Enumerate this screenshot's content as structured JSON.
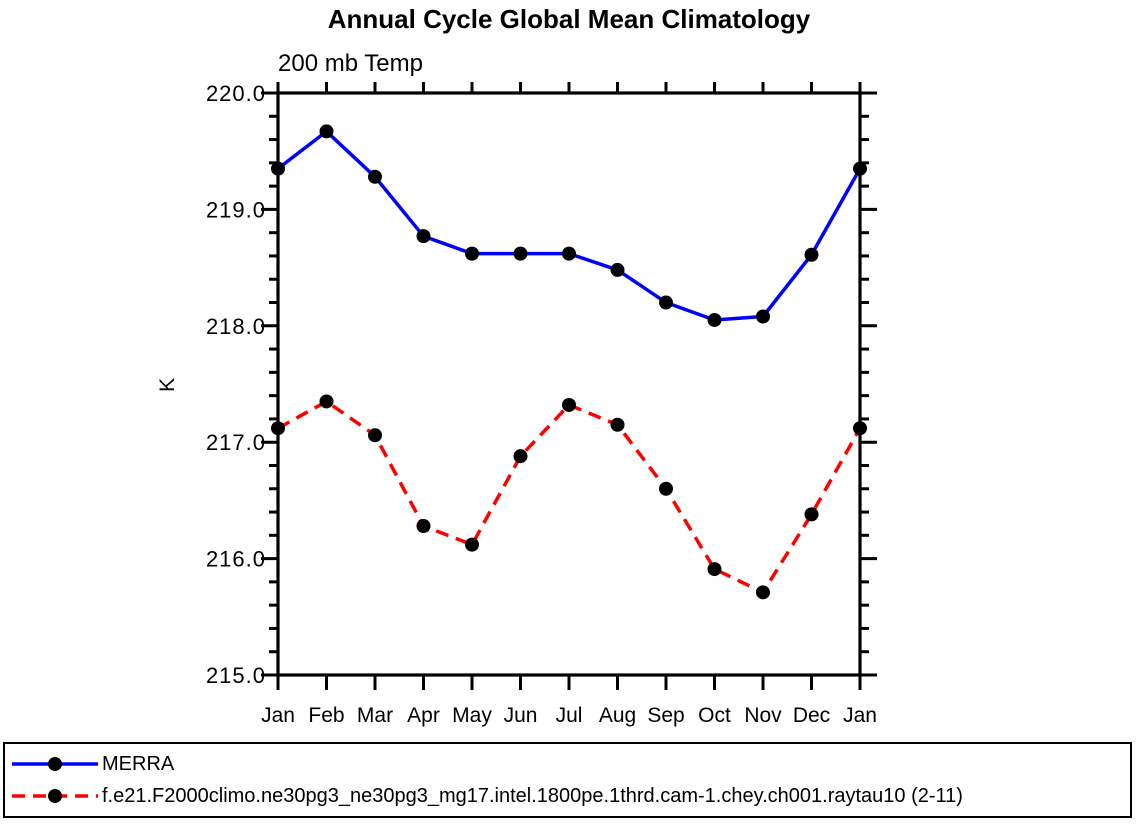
{
  "chart_data": {
    "type": "line",
    "title": "Annual Cycle Global Mean Climatology",
    "subtitle": "200 mb Temp",
    "ylabel": "K",
    "xlabel": "",
    "categories": [
      "Jan",
      "Feb",
      "Mar",
      "Apr",
      "May",
      "Jun",
      "Jul",
      "Aug",
      "Sep",
      "Oct",
      "Nov",
      "Dec",
      "Jan"
    ],
    "ylim": [
      215.0,
      220.0
    ],
    "ytick_major": 1.0,
    "ytick_minor": 0.2,
    "ytick_labels": [
      "220.0",
      "219.0",
      "218.0",
      "217.0",
      "216.0",
      "215.0"
    ],
    "grid": false,
    "legend_position": "bottom-box",
    "axis_color": "#000000",
    "marker_shape": "filled-circle",
    "series": [
      {
        "name": "MERRA",
        "line_color": "#0000ff",
        "line_style": "solid",
        "marker_color": "#000000",
        "values": [
          219.35,
          219.67,
          219.28,
          218.77,
          218.62,
          218.62,
          218.62,
          218.48,
          218.2,
          218.05,
          218.08,
          218.61,
          219.35
        ]
      },
      {
        "name": "f.e21.F2000climo.ne30pg3_ne30pg3_mg17.intel.1800pe.1thrd.cam-1.chey.ch001.raytau10 (2-11)",
        "line_color": "#ff0000",
        "line_style": "dashed",
        "marker_color": "#000000",
        "values": [
          217.12,
          217.35,
          217.06,
          216.28,
          216.12,
          216.88,
          217.32,
          217.15,
          216.6,
          215.91,
          215.71,
          216.38,
          217.12
        ]
      }
    ]
  }
}
